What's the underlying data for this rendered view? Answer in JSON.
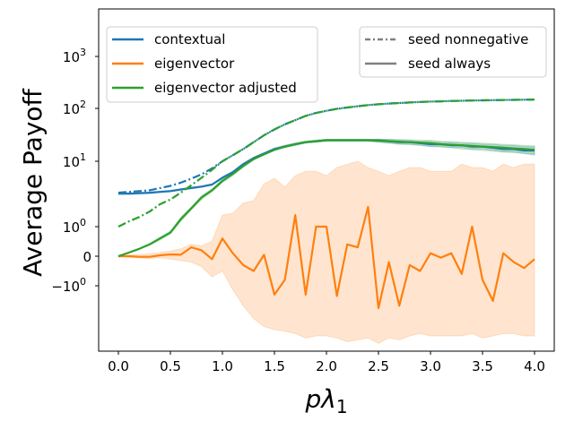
{
  "chart_data": {
    "type": "line",
    "title": "",
    "xlabel": "pλ1",
    "ylabel": "Average Payoff",
    "yscale": "symlog",
    "xlim": [
      -0.2,
      4.2
    ],
    "ylim": [
      -10,
      5000
    ],
    "x_ticks": [
      "0.0",
      "0.5",
      "1.0",
      "1.5",
      "2.0",
      "2.5",
      "3.0",
      "3.5",
      "4.0"
    ],
    "x_tick_values": [
      0,
      0.5,
      1,
      1.5,
      2,
      2.5,
      3,
      3.5,
      4
    ],
    "y_ticks": [
      {
        "value": 1000,
        "base": "10",
        "exp": "3",
        "sign": ""
      },
      {
        "value": 100,
        "base": "10",
        "exp": "2",
        "sign": ""
      },
      {
        "value": 10,
        "base": "10",
        "exp": "1",
        "sign": ""
      },
      {
        "value": 1,
        "base": "10",
        "exp": "0",
        "sign": ""
      },
      {
        "value": 0,
        "base": "0",
        "exp": "",
        "sign": ""
      },
      {
        "value": -1,
        "base": "10",
        "exp": "0",
        "sign": "−"
      }
    ],
    "grid": false,
    "x": [
      0,
      0.1,
      0.2,
      0.3,
      0.4,
      0.5,
      0.6,
      0.7,
      0.8,
      0.9,
      1.0,
      1.1,
      1.2,
      1.3,
      1.4,
      1.5,
      1.6,
      1.7,
      1.8,
      1.9,
      2.0,
      2.1,
      2.2,
      2.3,
      2.4,
      2.5,
      2.6,
      2.7,
      2.8,
      2.9,
      3.0,
      3.1,
      3.2,
      3.3,
      3.4,
      3.5,
      3.6,
      3.7,
      3.8,
      3.9,
      4.0
    ],
    "legend_methods": {
      "position": "top-left",
      "entries": [
        {
          "label": "contextual",
          "color": "#1f77b4"
        },
        {
          "label": "eigenvector",
          "color": "#ff7f0e"
        },
        {
          "label": "eigenvector adjusted",
          "color": "#2ca02c"
        }
      ]
    },
    "legend_styles": {
      "position": "top-right",
      "entries": [
        {
          "label": "seed nonnegative",
          "style": "dashdot",
          "color": "#808080"
        },
        {
          "label": "seed always",
          "style": "solid",
          "color": "#808080"
        }
      ]
    },
    "series": [
      {
        "name": "contextual",
        "style": "dashdot",
        "color": "#1f77b4",
        "values": [
          3.3,
          3.4,
          3.5,
          3.6,
          3.9,
          4.2,
          4.7,
          5.4,
          6.3,
          7.8,
          10,
          13,
          17,
          23,
          31,
          40,
          50,
          60,
          72,
          82,
          90,
          98,
          104,
          110,
          116,
          120,
          124,
          127,
          130,
          133,
          135,
          137,
          139,
          140,
          142,
          143,
          144,
          145,
          146,
          147,
          148
        ]
      },
      {
        "name": "contextual",
        "style": "solid",
        "color": "#1f77b4",
        "values": [
          3.2,
          3.2,
          3.25,
          3.3,
          3.4,
          3.5,
          3.7,
          3.9,
          4.1,
          4.4,
          5.6,
          6.8,
          9.0,
          11.5,
          14,
          17,
          19,
          21,
          23,
          24,
          25,
          25,
          25,
          25,
          25,
          25,
          24,
          23,
          23,
          22,
          21,
          21,
          20,
          20,
          19,
          19,
          18,
          17,
          17,
          16,
          16
        ],
        "band": {
          "lower": [
            3.1,
            3.1,
            3.15,
            3.2,
            3.3,
            3.4,
            3.6,
            3.8,
            4.0,
            4.3,
            5.4,
            6.5,
            8.6,
            11,
            13.5,
            16,
            18,
            20,
            22,
            23,
            24,
            24,
            24,
            24,
            24,
            23,
            22,
            21,
            21,
            20,
            19,
            19,
            18,
            18,
            17,
            17,
            16,
            15,
            15,
            14,
            13
          ],
          "upper": [
            3.3,
            3.3,
            3.35,
            3.4,
            3.5,
            3.6,
            3.8,
            4.0,
            4.2,
            4.5,
            5.8,
            7.1,
            9.4,
            12,
            14.5,
            18,
            20,
            22,
            24,
            25,
            26,
            26,
            26,
            26,
            26,
            26,
            26,
            25,
            25,
            24,
            24,
            23,
            23,
            22,
            22,
            21,
            21,
            20,
            20,
            19,
            19
          ]
        }
      },
      {
        "name": "eigenvector",
        "style": "solid",
        "color": "#ff7f0e",
        "values": [
          0,
          0.0,
          -0.02,
          -0.02,
          0.03,
          0.06,
          0.05,
          0.3,
          0.2,
          -0.1,
          0.6,
          0.1,
          -0.3,
          -0.5,
          0.05,
          -1.5,
          -0.8,
          1.5,
          -1.5,
          1.0,
          1.0,
          -1.6,
          0.4,
          0.3,
          2.0,
          -2.8,
          -0.2,
          -2.5,
          -0.3,
          -0.5,
          0.1,
          -0.05,
          0.1,
          -0.6,
          1.0,
          -0.8,
          -2.0,
          0.1,
          -0.2,
          -0.4,
          -0.1
        ],
        "band": {
          "lower": [
            -0.02,
            -0.04,
            -0.06,
            -0.08,
            -0.05,
            -0.1,
            -0.15,
            -0.2,
            -0.35,
            -0.7,
            -0.5,
            -1.2,
            -2.5,
            -4.5,
            -6.5,
            -7.5,
            -8,
            -9,
            -11,
            -10,
            -10,
            -11,
            -13,
            -12,
            -11,
            -14,
            -11,
            -12,
            -10,
            -9,
            -10,
            -10,
            -10,
            -10,
            -9,
            -11,
            -10,
            -9,
            -9,
            -10,
            -10
          ],
          "upper": [
            0.02,
            0.04,
            0.05,
            0.08,
            0.12,
            0.18,
            0.25,
            0.4,
            0.35,
            0.5,
            1.5,
            1.6,
            2.3,
            2.5,
            4.5,
            5.5,
            4,
            6,
            7,
            7,
            6,
            8,
            9,
            10,
            8,
            7,
            6,
            7,
            8,
            8,
            7,
            7,
            7,
            9,
            8,
            8,
            7,
            9,
            8,
            9,
            9
          ]
        }
      },
      {
        "name": "eigenvector adjusted",
        "style": "dashdot",
        "color": "#2ca02c",
        "values": [
          1.0,
          1.2,
          1.4,
          1.7,
          2.2,
          2.6,
          3.3,
          4.3,
          5.6,
          7.4,
          10,
          13,
          17,
          23,
          31,
          40,
          50,
          60,
          72,
          82,
          90,
          98,
          104,
          110,
          116,
          120,
          124,
          127,
          130,
          133,
          135,
          137,
          139,
          140,
          142,
          143,
          144,
          145,
          146,
          147,
          148
        ]
      },
      {
        "name": "eigenvector adjusted",
        "style": "solid",
        "color": "#2ca02c",
        "values": [
          0,
          0.12,
          0.25,
          0.4,
          0.6,
          0.8,
          1.3,
          1.9,
          2.8,
          3.6,
          5,
          6.4,
          8.5,
          11,
          13.5,
          16.5,
          19,
          21,
          23,
          24,
          25,
          25,
          25,
          25,
          25,
          24.5,
          24,
          23.5,
          23,
          22.5,
          22,
          21,
          20.5,
          20,
          19.5,
          19,
          18.5,
          18,
          17.5,
          17,
          16.5
        ],
        "band": {
          "lower": [
            0,
            0.11,
            0.23,
            0.37,
            0.55,
            0.75,
            1.2,
            1.8,
            2.6,
            3.4,
            4.7,
            6,
            8,
            10.5,
            13,
            16,
            18,
            20,
            22,
            23,
            24,
            24,
            24,
            24,
            24,
            23,
            22,
            21,
            20.5,
            20,
            19,
            18.5,
            18,
            17,
            16.5,
            16,
            15.5,
            15,
            14.5,
            14,
            13.5
          ],
          "upper": [
            0,
            0.13,
            0.27,
            0.43,
            0.65,
            0.85,
            1.4,
            2.0,
            3.0,
            3.8,
            5.3,
            6.8,
            9,
            11.5,
            14,
            17,
            20,
            22,
            24,
            25,
            26,
            26,
            26,
            26,
            26,
            26,
            26,
            26,
            25.5,
            25,
            25,
            24,
            23.5,
            23,
            22.5,
            22,
            21.5,
            21,
            20.5,
            20,
            19.5
          ]
        }
      }
    ]
  }
}
